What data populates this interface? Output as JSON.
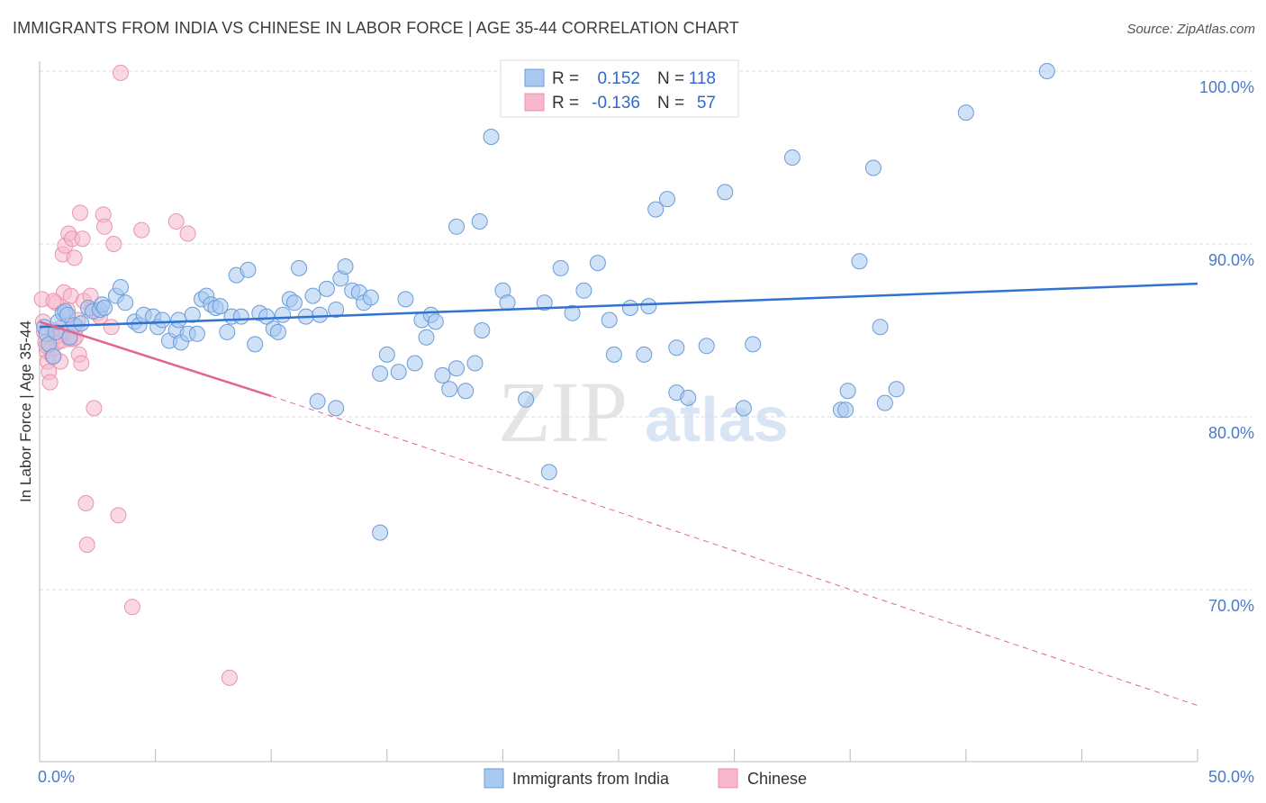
{
  "title": "IMMIGRANTS FROM INDIA VS CHINESE IN LABOR FORCE | AGE 35-44 CORRELATION CHART",
  "source": "Source: ZipAtlas.com",
  "watermark": {
    "zip": "ZIP",
    "atlas": "atlas"
  },
  "colors": {
    "blue_fill": "#a8c8f0",
    "blue_stroke": "#6b9bd8",
    "blue_line": "#2f72d0",
    "pink_fill": "#f6b8ca",
    "pink_stroke": "#e895b0",
    "pink_line": "#e0668f",
    "grid": "#dedede",
    "axis_text": "#4a7ac8"
  },
  "chart_data": {
    "type": "scatter",
    "xlabel": "",
    "ylabel": "In Labor Force | Age 35-44",
    "xlim": [
      0,
      50
    ],
    "ylim": [
      60.5,
      101
    ],
    "x_tick_labels": [
      "0.0%",
      "50.0%"
    ],
    "y_ticks": [
      70,
      80,
      90,
      100
    ],
    "y_tick_labels": [
      "70.0%",
      "80.0%",
      "90.0%",
      "100.0%"
    ],
    "legend": {
      "rows": [
        {
          "r_label": "R =",
          "r_value": "0.152",
          "n_label": "N =",
          "n_value": "118"
        },
        {
          "r_label": "R =",
          "r_value": "-0.136",
          "n_label": "N =",
          "n_value": "57"
        }
      ]
    },
    "series": [
      {
        "name": "Immigrants from India",
        "color": "#a8c8f0",
        "trend": {
          "x0": 0,
          "y0": 85.2,
          "x1": 50,
          "y1": 87.7,
          "dashed_to": null
        },
        "points": [
          [
            0.2,
            85.2
          ],
          [
            0.3,
            84.8
          ],
          [
            0.4,
            84.2
          ],
          [
            0.6,
            83.5
          ],
          [
            0.7,
            84.9
          ],
          [
            0.8,
            85.5
          ],
          [
            1.0,
            86.0
          ],
          [
            1.1,
            86.1
          ],
          [
            1.2,
            85.9
          ],
          [
            1.3,
            84.6
          ],
          [
            1.5,
            85.3
          ],
          [
            1.8,
            85.4
          ],
          [
            2.1,
            86.3
          ],
          [
            2.3,
            86.1
          ],
          [
            2.6,
            86.2
          ],
          [
            2.7,
            86.5
          ],
          [
            2.8,
            86.3
          ],
          [
            3.3,
            87.0
          ],
          [
            3.5,
            87.5
          ],
          [
            3.7,
            86.6
          ],
          [
            4.1,
            85.5
          ],
          [
            4.3,
            85.3
          ],
          [
            4.5,
            85.9
          ],
          [
            4.9,
            85.8
          ],
          [
            5.1,
            85.2
          ],
          [
            5.3,
            85.6
          ],
          [
            5.6,
            84.4
          ],
          [
            5.9,
            85.0
          ],
          [
            6.1,
            84.3
          ],
          [
            6.4,
            84.8
          ],
          [
            6.6,
            85.9
          ],
          [
            6.8,
            84.8
          ],
          [
            7.0,
            86.8
          ],
          [
            7.2,
            87.0
          ],
          [
            7.4,
            86.5
          ],
          [
            7.6,
            86.3
          ],
          [
            7.8,
            86.4
          ],
          [
            8.1,
            84.9
          ],
          [
            8.3,
            85.8
          ],
          [
            8.5,
            88.2
          ],
          [
            8.7,
            85.8
          ],
          [
            9.0,
            88.5
          ],
          [
            9.3,
            84.2
          ],
          [
            9.5,
            86.0
          ],
          [
            9.8,
            85.8
          ],
          [
            10.1,
            85.1
          ],
          [
            10.3,
            84.9
          ],
          [
            10.5,
            85.9
          ],
          [
            10.8,
            86.8
          ],
          [
            11.0,
            86.6
          ],
          [
            11.2,
            88.6
          ],
          [
            11.5,
            85.8
          ],
          [
            11.8,
            87.0
          ],
          [
            12.1,
            85.9
          ],
          [
            12.4,
            87.4
          ],
          [
            12.8,
            86.2
          ],
          [
            13.0,
            88.0
          ],
          [
            13.2,
            88.7
          ],
          [
            13.5,
            87.3
          ],
          [
            13.8,
            87.2
          ],
          [
            14.0,
            86.6
          ],
          [
            14.3,
            86.9
          ],
          [
            14.7,
            82.5
          ],
          [
            15.0,
            83.6
          ],
          [
            15.5,
            82.6
          ],
          [
            15.8,
            86.8
          ],
          [
            16.2,
            83.1
          ],
          [
            16.5,
            85.6
          ],
          [
            16.7,
            84.6
          ],
          [
            16.9,
            85.9
          ],
          [
            17.1,
            85.5
          ],
          [
            17.4,
            82.4
          ],
          [
            17.7,
            81.6
          ],
          [
            18.0,
            82.8
          ],
          [
            18.4,
            81.5
          ],
          [
            18.8,
            83.1
          ],
          [
            19.1,
            85.0
          ],
          [
            19.5,
            96.2
          ],
          [
            18.0,
            91.0
          ],
          [
            19.0,
            91.3
          ],
          [
            20.0,
            87.3
          ],
          [
            20.2,
            86.6
          ],
          [
            21.0,
            81.0
          ],
          [
            21.8,
            86.6
          ],
          [
            22.0,
            76.8
          ],
          [
            22.5,
            88.6
          ],
          [
            23.0,
            86.0
          ],
          [
            23.5,
            87.3
          ],
          [
            24.1,
            88.9
          ],
          [
            24.6,
            85.6
          ],
          [
            24.8,
            83.6
          ],
          [
            25.5,
            86.3
          ],
          [
            26.1,
            83.6
          ],
          [
            26.3,
            86.4
          ],
          [
            26.6,
            92.0
          ],
          [
            27.1,
            92.6
          ],
          [
            27.5,
            84.0
          ],
          [
            27.5,
            81.4
          ],
          [
            28.0,
            81.1
          ],
          [
            28.8,
            84.1
          ],
          [
            29.6,
            93.0
          ],
          [
            30.4,
            80.5
          ],
          [
            30.8,
            84.2
          ],
          [
            32.5,
            95.0
          ],
          [
            34.6,
            80.4
          ],
          [
            34.8,
            80.4
          ],
          [
            34.9,
            81.5
          ],
          [
            35.4,
            89.0
          ],
          [
            36.0,
            94.4
          ],
          [
            36.3,
            85.2
          ],
          [
            36.5,
            80.8
          ],
          [
            37.0,
            81.6
          ],
          [
            40.0,
            97.6
          ],
          [
            43.5,
            100.0
          ],
          [
            12.8,
            80.5
          ],
          [
            12.0,
            80.9
          ],
          [
            14.7,
            73.3
          ],
          [
            6.0,
            85.6
          ]
        ]
      },
      {
        "name": "Chinese",
        "color": "#f6b8ca",
        "trend": {
          "x0": 0,
          "y0": 85.5,
          "x1": 10,
          "y1": 81.2,
          "dashed_to": {
            "x": 50,
            "y": 63.3
          }
        },
        "points": [
          [
            0.1,
            86.8
          ],
          [
            0.15,
            85.5
          ],
          [
            0.2,
            84.9
          ],
          [
            0.25,
            84.3
          ],
          [
            0.3,
            83.8
          ],
          [
            0.35,
            83.2
          ],
          [
            0.4,
            82.6
          ],
          [
            0.45,
            82.0
          ],
          [
            0.5,
            84.0
          ],
          [
            0.55,
            83.5
          ],
          [
            0.6,
            85.0
          ],
          [
            0.65,
            84.6
          ],
          [
            0.7,
            86.6
          ],
          [
            0.75,
            84.3
          ],
          [
            0.8,
            84.7
          ],
          [
            0.85,
            85.1
          ],
          [
            0.9,
            83.2
          ],
          [
            0.95,
            84.4
          ],
          [
            1.0,
            89.4
          ],
          [
            1.05,
            87.2
          ],
          [
            1.1,
            89.9
          ],
          [
            1.15,
            84.9
          ],
          [
            1.2,
            86.2
          ],
          [
            1.25,
            90.6
          ],
          [
            1.3,
            84.5
          ],
          [
            1.35,
            87.0
          ],
          [
            1.4,
            90.3
          ],
          [
            1.45,
            84.5
          ],
          [
            1.5,
            89.2
          ],
          [
            1.55,
            84.6
          ],
          [
            1.6,
            85.2
          ],
          [
            1.65,
            85.6
          ],
          [
            1.7,
            83.6
          ],
          [
            1.75,
            91.8
          ],
          [
            1.8,
            83.1
          ],
          [
            1.85,
            90.3
          ],
          [
            1.9,
            86.7
          ],
          [
            2.0,
            75.0
          ],
          [
            2.05,
            72.6
          ],
          [
            2.2,
            87.0
          ],
          [
            2.25,
            86.2
          ],
          [
            2.35,
            80.5
          ],
          [
            2.5,
            86.0
          ],
          [
            2.6,
            85.8
          ],
          [
            2.75,
            91.7
          ],
          [
            2.8,
            91.0
          ],
          [
            3.1,
            85.2
          ],
          [
            3.2,
            90.0
          ],
          [
            3.4,
            74.3
          ],
          [
            3.5,
            99.9
          ],
          [
            4.0,
            69.0
          ],
          [
            4.4,
            90.8
          ],
          [
            5.9,
            91.3
          ],
          [
            6.4,
            90.6
          ],
          [
            8.2,
            64.9
          ],
          [
            0.3,
            84.1
          ],
          [
            0.6,
            86.7
          ]
        ]
      }
    ]
  }
}
